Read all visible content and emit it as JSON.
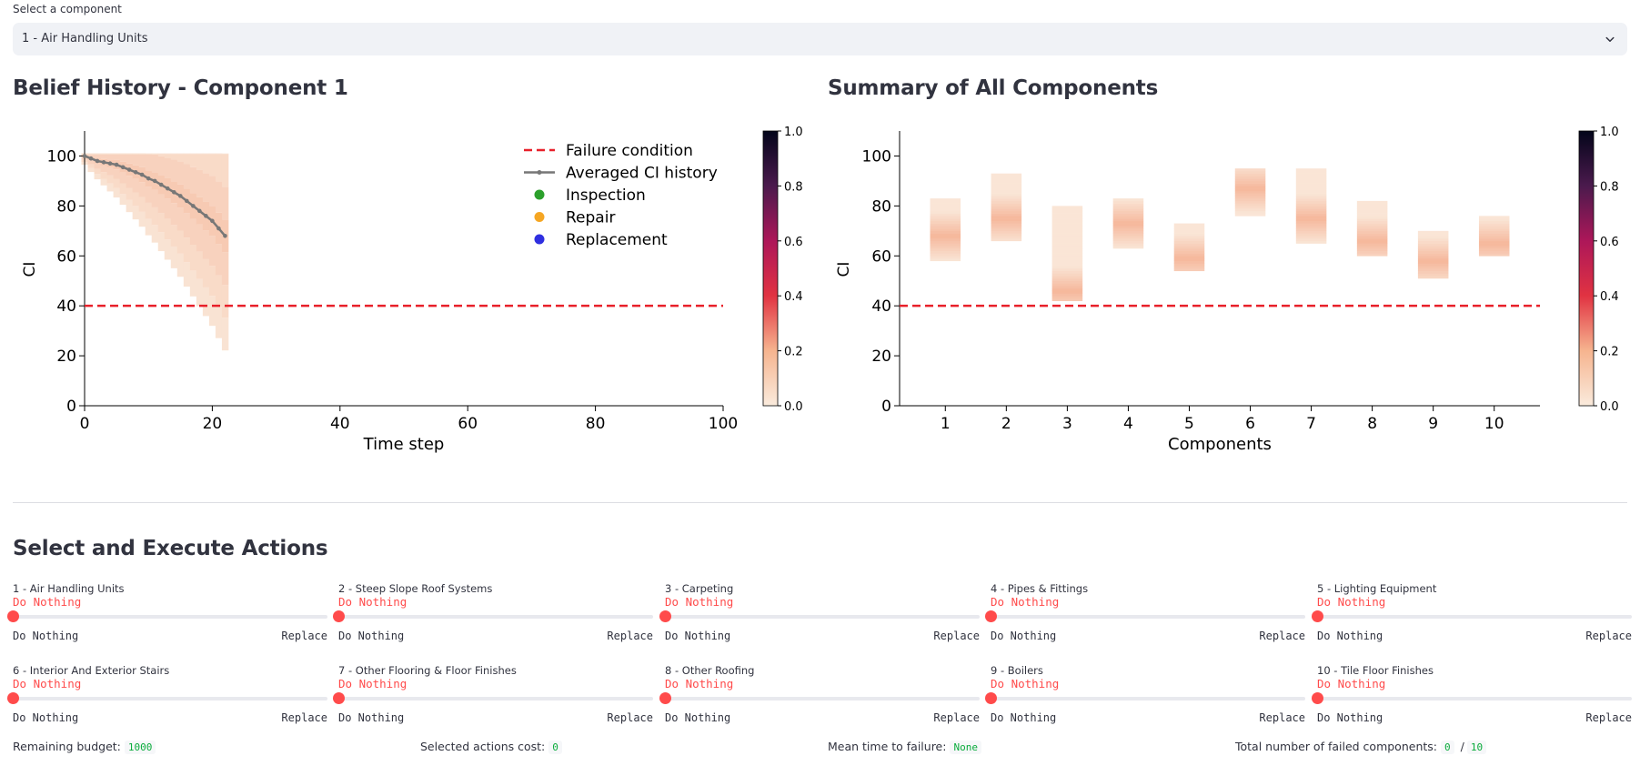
{
  "select": {
    "label": "Select a component",
    "value": "1 - Air Handling Units"
  },
  "belief": {
    "title": "Belief History - Component 1"
  },
  "summary": {
    "title": "Summary of All Components"
  },
  "actions": {
    "title": "Select and Execute Actions",
    "min_label": "Do Nothing",
    "max_label": "Replace",
    "items": [
      {
        "label": "1 - Air Handling Units",
        "value": "Do Nothing"
      },
      {
        "label": "2 - Steep Slope Roof Systems",
        "value": "Do Nothing"
      },
      {
        "label": "3 - Carpeting",
        "value": "Do Nothing"
      },
      {
        "label": "4 - Pipes & Fittings",
        "value": "Do Nothing"
      },
      {
        "label": "5 - Lighting Equipment",
        "value": "Do Nothing"
      },
      {
        "label": "6 - Interior And Exterior Stairs",
        "value": "Do Nothing"
      },
      {
        "label": "7 - Other Flooring & Floor Finishes",
        "value": "Do Nothing"
      },
      {
        "label": "8 - Other Roofing",
        "value": "Do Nothing"
      },
      {
        "label": "9 - Boilers",
        "value": "Do Nothing"
      },
      {
        "label": "10 - Tile Floor Finishes",
        "value": "Do Nothing"
      }
    ]
  },
  "metrics": {
    "budget_label": "Remaining budget:",
    "budget_value": "1000",
    "cost_label": "Selected actions cost:",
    "cost_value": "0",
    "mttf_label": "Mean time to failure:",
    "mttf_value": "None",
    "failed_label": "Total number of failed components:",
    "failed_value": "0",
    "failed_sep": "/",
    "failed_total": "10"
  },
  "chart_data": [
    {
      "type": "line",
      "xlabel": "Time step",
      "ylabel": "CI",
      "xlim": [
        0,
        100
      ],
      "ylim": [
        0,
        110
      ],
      "xticks": [
        0,
        20,
        40,
        60,
        80,
        100
      ],
      "yticks": [
        0,
        20,
        40,
        60,
        80,
        100
      ],
      "failure_condition": 40,
      "legend": [
        "Failure condition",
        "Averaged CI history",
        "Inspection",
        "Repair",
        "Replacement"
      ],
      "legend_colors": [
        "#e8202a",
        "#777777",
        "#2ca02c",
        "#f5a623",
        "#2f2fe0"
      ],
      "colorbar_ticks": [
        "0.0",
        "0.2",
        "0.4",
        "0.6",
        "0.8",
        "1.0"
      ],
      "series": [
        {
          "name": "Averaged CI history",
          "x": [
            0,
            1,
            2,
            3,
            4,
            5,
            6,
            7,
            8,
            9,
            10,
            11,
            12,
            13,
            14,
            15,
            16,
            17,
            18,
            19,
            20,
            21,
            22
          ],
          "y": [
            100,
            99,
            98,
            97.5,
            97,
            96.5,
            95.5,
            94.5,
            93.5,
            92.5,
            91,
            90,
            88.5,
            87,
            85.5,
            84,
            82,
            80,
            78,
            76,
            74,
            71,
            68
          ]
        }
      ]
    },
    {
      "type": "heatmap",
      "xlabel": "Components",
      "ylabel": "CI",
      "ylim": [
        0,
        110
      ],
      "categories": [
        "1",
        "2",
        "3",
        "4",
        "5",
        "6",
        "7",
        "8",
        "9",
        "10"
      ],
      "yticks": [
        0,
        20,
        40,
        60,
        80,
        100
      ],
      "failure_condition": 40,
      "colorbar_ticks": [
        "0.0",
        "0.2",
        "0.4",
        "0.6",
        "0.8",
        "1.0"
      ],
      "ranges": [
        [
          58,
          83
        ],
        [
          66,
          93
        ],
        [
          42,
          80
        ],
        [
          63,
          83
        ],
        [
          54,
          73
        ],
        [
          76,
          95
        ],
        [
          65,
          95
        ],
        [
          60,
          82
        ],
        [
          51,
          70
        ],
        [
          60,
          76
        ]
      ],
      "modes": [
        68,
        75,
        46,
        73,
        59,
        87,
        75,
        66,
        58,
        65
      ]
    }
  ]
}
